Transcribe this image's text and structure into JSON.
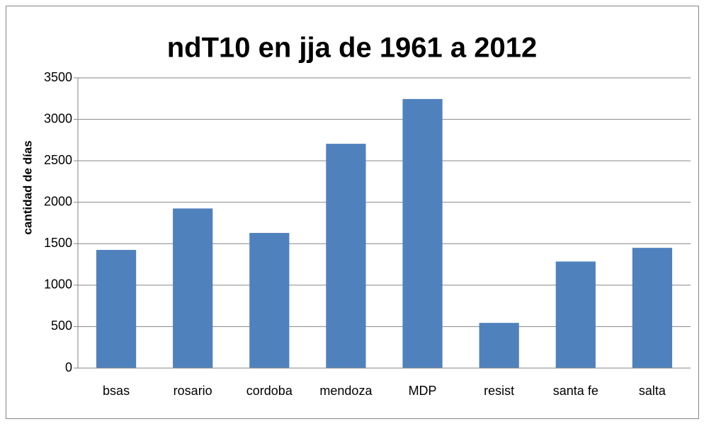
{
  "chart_data": {
    "type": "bar",
    "title": "ndT10 en jja de 1961 a 2012",
    "y_label": "cantidad de días",
    "categories": [
      "bsas",
      "rosario",
      "cordoba",
      "mendoza",
      "MDP",
      "resist",
      "santa fe",
      "salta"
    ],
    "values": [
      1425,
      1925,
      1630,
      2705,
      3245,
      545,
      1285,
      1450
    ],
    "color": "#4f81bd",
    "ylim": [
      0,
      3500
    ],
    "yticks": [
      0,
      500,
      1000,
      1500,
      2000,
      2500,
      3000,
      3500
    ],
    "grid": true
  }
}
